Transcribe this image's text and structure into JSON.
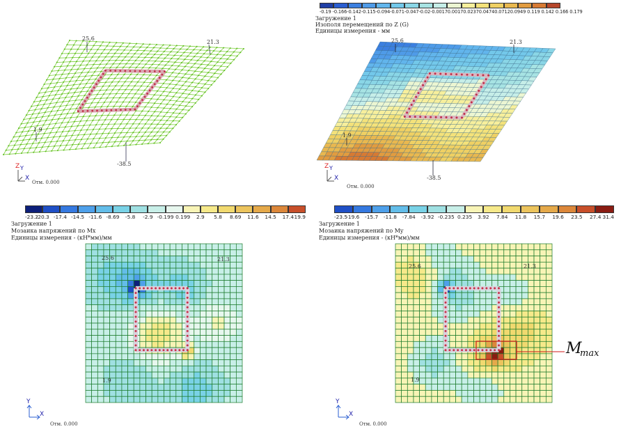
{
  "panels": {
    "tl": {
      "node_labels": [
        "25.6",
        "21.3",
        "1.9",
        "-38.5"
      ],
      "axis": {
        "z": "Z",
        "y": "Y",
        "x": "X"
      },
      "elevation": "Отм. 0.000"
    },
    "tr": {
      "legend_ticks": [
        "-0.19",
        "-0.166",
        "-0.142",
        "-0.115",
        "-0.094",
        "-0.071",
        "-0.047",
        "-0.02",
        "-0.0017",
        "0.00170",
        "0.0237",
        "0.0474",
        "0.0712",
        "0.0949",
        "0.119",
        "0.142",
        "0.166",
        "0.179"
      ],
      "legend_ticks_text": "-0.19 -0.166-0.142-0.115-0.094-0.071-0.047-0.02-0.00170.00170.02370.04740.07120.0949 0.119 0.142 0.166 0.179",
      "loading": "Загружение 1",
      "title": "Изополя перемещений по Z (G)",
      "units": "Единицы измерения - мм",
      "node_labels": [
        "25.6",
        "21.3",
        "1.9",
        "-38.5"
      ],
      "axis": {
        "z": "Z",
        "y": "Y",
        "x": "X"
      },
      "elevation": "Отм. 0.000",
      "colors": [
        "#1f3fa6",
        "#2a5ed1",
        "#3b7fe0",
        "#4f9be8",
        "#62b5ec",
        "#73c8ea",
        "#8ad6e6",
        "#a7e3e3",
        "#c6eee8",
        "#ecf6d2",
        "#f7ef9c",
        "#f4e27a",
        "#efd063",
        "#e9b84f",
        "#e29c3f",
        "#d77a33",
        "#b5462a"
      ]
    },
    "bl": {
      "legend_ticks": [
        "-23.2",
        "-20.3",
        "-17.4",
        "-14.5",
        "-11.6",
        "-8.69",
        "-5.8",
        "-2.9",
        "-0.199",
        "0.199",
        "2.9",
        "5.8",
        "8.69",
        "11.6",
        "14.5",
        "17.4",
        "19.9"
      ],
      "loading": "Загружение 1",
      "title": "Мозаика напряжений по Mx",
      "units": "Единицы измерения - (кН*мм)/мм",
      "node_labels": [
        "25.6",
        "21.3",
        "1.9"
      ],
      "axis": {
        "y": "Y",
        "x": "X"
      },
      "elevation": "Отм. 0.000",
      "colors": [
        "#0d1f7a",
        "#1f4fc6",
        "#3579e0",
        "#4ea0ea",
        "#63bde9",
        "#79d2e6",
        "#9fe0e2",
        "#c8efe8",
        "#e7f7ee",
        "#f8f4b6",
        "#f6e98a",
        "#f1d96f",
        "#ecc45d",
        "#e5a94a",
        "#dc873a",
        "#c84f2a"
      ]
    },
    "br": {
      "legend_ticks": [
        "-23.5",
        "-19.6",
        "-15.7",
        "-11.8",
        "-7.84",
        "-3.92",
        "-0.235",
        "0.235",
        "3.92",
        "7.84",
        "11.8",
        "15.7",
        "19.6",
        "23.5",
        "27.4",
        "31.4"
      ],
      "loading": "Загружение 1",
      "title": "Мозаика напряжений по My",
      "units": "Единицы измерения - (кН*мм)/мм",
      "node_labels": [
        "25.6",
        "21.3",
        "1.9"
      ],
      "axis": {
        "y": "Y",
        "x": "X"
      },
      "elevation": "Отм. 0.000",
      "annotation": "M",
      "annotation_sub": "max",
      "colors": [
        "#1f4fc6",
        "#3579e0",
        "#4ea0ea",
        "#63bde9",
        "#79d2e6",
        "#9fe0e2",
        "#c8efe8",
        "#f8f4b6",
        "#f6e98a",
        "#f1d96f",
        "#ecc45d",
        "#e5a94a",
        "#dc873a",
        "#c84f2a",
        "#8a1c12"
      ]
    }
  }
}
